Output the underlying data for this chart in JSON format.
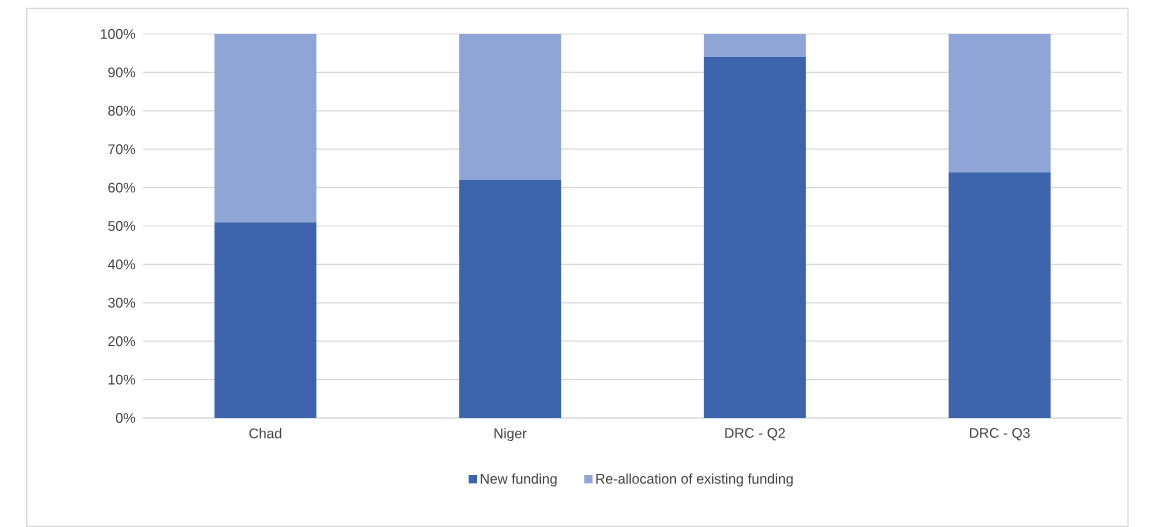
{
  "chart_data": {
    "type": "bar",
    "stacked": true,
    "categories": [
      "Chad",
      "Niger",
      "DRC - Q2",
      "DRC - Q3"
    ],
    "series": [
      {
        "name": "New funding",
        "color": "#3c64ad",
        "values": [
          51,
          62,
          94,
          64
        ]
      },
      {
        "name": "Re-allocation of existing funding",
        "color": "#8fa5d5",
        "values": [
          49,
          38,
          6,
          36
        ]
      }
    ],
    "ylim": [
      0,
      100
    ],
    "yticks": [
      {
        "value": 0,
        "label": "0%"
      },
      {
        "value": 10,
        "label": "10%"
      },
      {
        "value": 20,
        "label": "20%"
      },
      {
        "value": 30,
        "label": "30%"
      },
      {
        "value": 40,
        "label": "40%"
      },
      {
        "value": 50,
        "label": "50%"
      },
      {
        "value": 60,
        "label": "60%"
      },
      {
        "value": 70,
        "label": "70%"
      },
      {
        "value": 80,
        "label": "80%"
      },
      {
        "value": 90,
        "label": "90%"
      },
      {
        "value": 100,
        "label": "100%"
      }
    ],
    "grid": "y",
    "legend": "bottom"
  }
}
